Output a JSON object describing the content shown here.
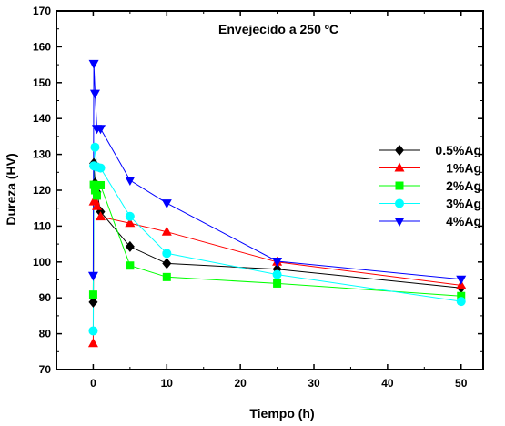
{
  "chart_data": {
    "type": "line",
    "title": "Envejecido a 250 ºC",
    "xlabel": "Tiempo (h)",
    "ylabel": "Dureza (HV)",
    "xlim": [
      -5,
      53
    ],
    "ylim": [
      70,
      170
    ],
    "xticks": [
      0,
      10,
      20,
      30,
      40,
      50
    ],
    "yticks": [
      70,
      80,
      90,
      100,
      110,
      120,
      130,
      140,
      150,
      160,
      170
    ],
    "grid": false,
    "legend_position": "right",
    "series": [
      {
        "name": "0.5%Ag",
        "color": "#000000",
        "marker": "diamond",
        "x": [
          0,
          0.08,
          0.25,
          0.5,
          1,
          5,
          10,
          25,
          50
        ],
        "y": [
          88.8,
          127.5,
          122,
          119.5,
          114,
          104.3,
          99.6,
          98,
          92.8
        ]
      },
      {
        "name": "1%Ag",
        "color": "#ff0000",
        "marker": "triangle-up",
        "x": [
          0,
          0.08,
          0.25,
          0.5,
          1,
          5,
          10,
          25,
          50
        ],
        "y": [
          77.3,
          116.8,
          117,
          115.5,
          112.6,
          110.8,
          108.4,
          100,
          93.5
        ]
      },
      {
        "name": "2%Ag",
        "color": "#00ff00",
        "marker": "square",
        "x": [
          0,
          0.08,
          0.25,
          0.5,
          1,
          5,
          10,
          25,
          50
        ],
        "y": [
          90.9,
          121.5,
          120,
          118.5,
          121.4,
          99,
          95.8,
          94,
          90.5
        ]
      },
      {
        "name": "3%Ag",
        "color": "#00ffff",
        "marker": "circle",
        "x": [
          0,
          0.08,
          0.25,
          0.5,
          1,
          5,
          10,
          25,
          50
        ],
        "y": [
          80.8,
          126.8,
          132,
          126.5,
          126.2,
          112.7,
          102.4,
          96.5,
          89
        ]
      },
      {
        "name": "4%Ag",
        "color": "#0000ff",
        "marker": "triangle-down",
        "x": [
          0,
          0.08,
          0.25,
          0.5,
          1,
          5,
          10,
          25,
          50
        ],
        "y": [
          96.2,
          155.3,
          147,
          137.2,
          137.2,
          122.8,
          116.4,
          100.2,
          95.2
        ]
      }
    ]
  }
}
